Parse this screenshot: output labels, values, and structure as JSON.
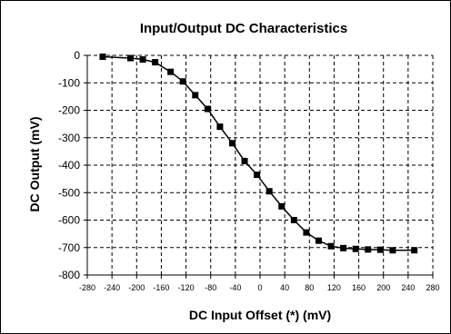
{
  "chart_data": {
    "type": "line",
    "title": "Input/Output DC Characteristics",
    "xlabel": "DC Input Offset (*) (mV)",
    "ylabel": "DC Output (mV)",
    "xlim": [
      -280,
      280
    ],
    "ylim": [
      -800,
      0
    ],
    "xticks": [
      -280,
      -240,
      -200,
      -160,
      -120,
      -80,
      -40,
      0,
      40,
      80,
      120,
      160,
      200,
      240,
      280
    ],
    "yticks": [
      0,
      -100,
      -200,
      -300,
      -400,
      -500,
      -600,
      -700,
      -800
    ],
    "xtick_labels": [
      "-280",
      "-240",
      "-200",
      "-160",
      "-120",
      "-80",
      "-40",
      "0",
      "40",
      "80",
      "120",
      "160",
      "200",
      "240",
      "280"
    ],
    "ytick_labels": [
      "0",
      "-100",
      "-200",
      "-300",
      "-400",
      "-500",
      "-600",
      "-700",
      "-800"
    ],
    "grid": true,
    "line_color": "#000000",
    "series": [
      {
        "x": [
          -255,
          -210,
          -190,
          -170,
          -145,
          -125,
          -105,
          -85,
          -65,
          -45,
          -25,
          -5,
          15,
          35,
          55,
          75,
          95,
          115,
          135,
          155,
          175,
          195,
          215,
          250
        ],
        "y": [
          -5,
          -10,
          -15,
          -25,
          -60,
          -95,
          -145,
          -195,
          -260,
          -320,
          -385,
          -435,
          -495,
          -550,
          -600,
          -645,
          -675,
          -695,
          -702,
          -705,
          -707,
          -708,
          -710,
          -710
        ]
      }
    ]
  }
}
